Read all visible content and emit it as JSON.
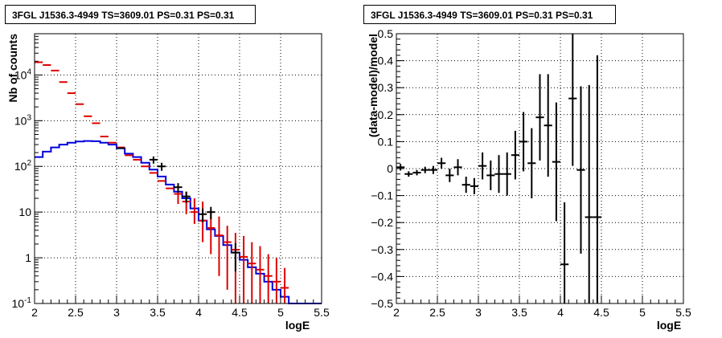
{
  "chart_data": [
    {
      "type": "line",
      "title": "3FGL J1536.3-4949 TS=3609.01 PS=0.31 PS=0.31",
      "xlabel": "logE",
      "ylabel": "Nb of counts",
      "xlim": [
        2,
        5.5
      ],
      "ylim": [
        0.1,
        80000
      ],
      "yscale": "log",
      "grid": true,
      "x_ticks": [
        "2",
        "2.5",
        "3",
        "3.5",
        "4",
        "4.5",
        "5",
        "5.5"
      ],
      "y_ticks": [
        {
          "value": 0.1,
          "label": "10^-1"
        },
        {
          "value": 1,
          "label": "1"
        },
        {
          "value": 10,
          "label": "10"
        },
        {
          "value": 100,
          "label": "10^2"
        },
        {
          "value": 1000,
          "label": "10^3"
        },
        {
          "value": 10000,
          "label": "10^4"
        }
      ],
      "bin_edges": [
        2.0,
        2.1,
        2.2,
        2.3,
        2.4,
        2.5,
        2.6,
        2.7,
        2.8,
        2.9,
        3.0,
        3.1,
        3.2,
        3.3,
        3.4,
        3.5,
        3.6,
        3.7,
        3.8,
        3.9,
        4.0,
        4.1,
        4.2,
        4.3,
        4.4,
        4.5,
        4.6,
        4.7,
        4.8,
        4.9,
        5.0,
        5.1,
        5.2,
        5.3,
        5.4,
        5.5
      ],
      "series": [
        {
          "role": "model-total",
          "color": "#dd0000",
          "x": [
            2.05,
            2.15,
            2.25,
            2.35,
            2.45,
            2.55,
            2.65,
            2.75,
            2.85,
            2.95,
            3.05,
            3.15,
            3.25,
            3.35,
            3.45,
            3.55,
            3.65,
            3.75,
            3.85,
            3.95,
            4.05,
            4.15,
            4.25,
            4.35,
            4.45,
            4.55,
            4.65,
            4.75,
            4.85,
            4.95,
            5.05
          ],
          "values": [
            19000,
            16500,
            12500,
            7000,
            4000,
            2300,
            1250,
            880,
            450,
            330,
            260,
            175,
            140,
            100,
            72,
            48,
            33,
            25,
            17,
            10,
            6.5,
            4.5,
            3.1,
            2.2,
            1.5,
            1.05,
            0.75,
            0.55,
            0.4,
            0.3,
            0.22
          ],
          "err_low": [
            0,
            0,
            0,
            0,
            0,
            0,
            0,
            0,
            0,
            0,
            0,
            0,
            0,
            0,
            0,
            0,
            0,
            0,
            0,
            0,
            0,
            0,
            0,
            0,
            0,
            0,
            0.6,
            0.45,
            0.35,
            0.25,
            0.18
          ],
          "err_high": [
            0,
            0,
            0,
            0,
            0,
            0,
            0,
            0,
            0,
            0,
            0,
            0,
            0,
            0,
            0,
            0,
            0,
            0,
            0,
            0,
            0,
            0,
            0,
            0,
            0,
            0,
            0,
            0,
            0.4,
            0.3,
            0
          ],
          "err_bars_x": [
            3.75,
            3.85,
            3.95,
            4.05,
            4.15,
            4.25,
            4.35,
            4.45,
            4.55,
            4.65,
            4.75,
            4.85,
            4.95,
            5.05
          ],
          "err_bars_low": [
            15,
            9,
            5.5,
            2.2,
            1.2,
            0.4,
            0.2,
            0.1,
            0.1,
            0.1,
            0.1,
            0.1,
            0.1,
            0.1
          ],
          "err_bars_high": [
            40,
            28,
            20,
            17,
            11,
            8,
            5,
            3.5,
            3,
            2.2,
            1.8,
            1.2,
            1.0,
            0.6
          ]
        },
        {
          "role": "data",
          "color": "#000000",
          "x": [
            3.05,
            3.45,
            3.55,
            3.75,
            3.85,
            4.05,
            4.15,
            4.45
          ],
          "values": [
            250,
            140,
            100,
            35,
            22,
            9,
            10,
            1.3
          ],
          "y_err": [
            0,
            25,
            20,
            8,
            6,
            3,
            3,
            0.8
          ]
        },
        {
          "role": "source-model",
          "color": "#0000dd",
          "x": [
            2.05,
            2.15,
            2.25,
            2.35,
            2.45,
            2.55,
            2.65,
            2.75,
            2.85,
            2.95,
            3.05,
            3.15,
            3.25,
            3.35,
            3.45,
            3.55,
            3.65,
            3.75,
            3.85,
            3.95,
            4.05,
            4.15,
            4.25,
            4.35,
            4.45,
            4.55,
            4.65,
            4.75,
            4.85,
            4.95,
            5.05,
            5.15,
            5.25,
            5.35,
            5.45
          ],
          "values": [
            160,
            210,
            260,
            300,
            330,
            350,
            360,
            355,
            330,
            300,
            250,
            190,
            160,
            120,
            85,
            60,
            40,
            28,
            20,
            12,
            6.5,
            4.2,
            3.0,
            1.9,
            1.3,
            0.9,
            0.62,
            0.45,
            0.3,
            0.2,
            0.14,
            0.1,
            0.1,
            0.1,
            0.1
          ]
        }
      ]
    },
    {
      "type": "scatter",
      "title": "3FGL J1536.3-4949 TS=3609.01 PS=0.31 PS=0.31",
      "xlabel": "logE",
      "ylabel": "(data-model)/model",
      "xlim": [
        2,
        5.5
      ],
      "ylim": [
        -0.5,
        0.5
      ],
      "grid": true,
      "x_ticks": [
        "2",
        "2.5",
        "3",
        "3.5",
        "4",
        "4.5",
        "5",
        "5.5"
      ],
      "y_ticks": [
        "-0.5",
        "-0.4",
        "-0.3",
        "-0.2",
        "-0.1",
        "0",
        "0.1",
        "0.2",
        "0.3",
        "0.4",
        "0.5"
      ],
      "series": [
        {
          "color": "#000000",
          "x": [
            2.05,
            2.15,
            2.25,
            2.35,
            2.45,
            2.55,
            2.65,
            2.75,
            2.85,
            2.95,
            3.05,
            3.15,
            3.25,
            3.35,
            3.45,
            3.55,
            3.65,
            3.75,
            3.85,
            3.95,
            4.05,
            4.15,
            4.25,
            4.35,
            4.45
          ],
          "values": [
            0.005,
            -0.02,
            -0.015,
            -0.005,
            -0.005,
            0.02,
            -0.025,
            0.005,
            -0.06,
            -0.065,
            0.01,
            -0.025,
            -0.02,
            -0.02,
            0.05,
            0.1,
            0.02,
            0.19,
            0.16,
            0.025,
            -0.355,
            0.26,
            -0.005,
            -0.18,
            -0.18
          ],
          "x_err": [
            0.05,
            0.05,
            0.05,
            0.05,
            0.05,
            0.05,
            0.05,
            0.05,
            0.05,
            0.05,
            0.05,
            0.05,
            0.05,
            0.05,
            0.05,
            0.05,
            0.05,
            0.05,
            0.05,
            0.05,
            0.05,
            0.05,
            0.05,
            0.05,
            0.05
          ],
          "y_err": [
            0.012,
            0.01,
            0.01,
            0.012,
            0.015,
            0.02,
            0.025,
            0.03,
            0.03,
            0.03,
            0.05,
            0.055,
            0.07,
            0.08,
            0.09,
            0.11,
            0.13,
            0.16,
            0.19,
            0.22,
            0.23,
            0.25,
            0.31,
            0.49,
            0.6
          ]
        }
      ]
    }
  ]
}
